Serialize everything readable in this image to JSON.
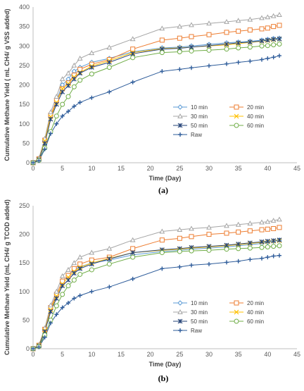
{
  "figure": {
    "panel_tags": [
      "(a)",
      "(b)"
    ]
  },
  "chart_data": [
    {
      "type": "line",
      "title": "",
      "panel_label": "(a)",
      "xlabel": "Time (Day)",
      "ylabel": "Cumulative Methane Yield ( mL CH4/ g VSS added)",
      "xlim": [
        0,
        45
      ],
      "ylim": [
        0,
        400
      ],
      "x_ticks": [
        0,
        5,
        10,
        15,
        20,
        25,
        30,
        35,
        40,
        45
      ],
      "y_ticks": [
        0,
        50,
        100,
        150,
        200,
        250,
        300,
        350,
        400
      ],
      "grid": false,
      "legend_position": "center-right",
      "x": [
        0,
        1,
        2,
        3,
        4,
        5,
        6,
        7,
        8,
        10,
        13,
        17,
        22,
        25,
        27,
        30,
        33,
        35,
        37,
        39,
        40,
        41,
        42
      ],
      "series": [
        {
          "name": "10 min",
          "color": "#5b9bd5",
          "marker": "diamond",
          "values": [
            0,
            8,
            55,
            120,
            160,
            200,
            215,
            235,
            245,
            258,
            268,
            285,
            295,
            297,
            300,
            304,
            308,
            310,
            312,
            315,
            317,
            319,
            320
          ]
        },
        {
          "name": "20 min",
          "color": "#ed7d31",
          "marker": "square",
          "values": [
            0,
            10,
            58,
            122,
            160,
            190,
            205,
            225,
            240,
            253,
            265,
            292,
            315,
            320,
            324,
            329,
            335,
            338,
            341,
            344,
            346,
            350,
            353
          ]
        },
        {
          "name": "30 min",
          "color": "#a5a5a5",
          "marker": "triangle",
          "values": [
            0,
            12,
            62,
            130,
            170,
            215,
            230,
            250,
            268,
            282,
            296,
            318,
            345,
            350,
            354,
            358,
            362,
            365,
            368,
            372,
            374,
            377,
            380
          ]
        },
        {
          "name": "40 min",
          "color": "#ffc000",
          "marker": "x",
          "values": [
            0,
            9,
            56,
            118,
            155,
            190,
            203,
            220,
            232,
            248,
            262,
            283,
            293,
            295,
            297,
            300,
            303,
            306,
            309,
            312,
            314,
            316,
            318
          ]
        },
        {
          "name": "50 min",
          "color": "#264478",
          "marker": "asterisk",
          "values": [
            0,
            8,
            50,
            112,
            150,
            182,
            198,
            215,
            230,
            245,
            258,
            280,
            292,
            294,
            297,
            301,
            305,
            308,
            310,
            313,
            315,
            317,
            318
          ]
        },
        {
          "name": "60 min",
          "color": "#70ad47",
          "marker": "circle",
          "values": [
            0,
            6,
            38,
            80,
            120,
            150,
            170,
            195,
            212,
            228,
            245,
            270,
            283,
            285,
            287,
            289,
            292,
            295,
            297,
            300,
            301,
            303,
            305
          ]
        },
        {
          "name": "Raw",
          "color": "#2e5c9a",
          "marker": "plus",
          "values": [
            0,
            5,
            35,
            75,
            100,
            120,
            132,
            145,
            155,
            167,
            182,
            207,
            235,
            240,
            244,
            249,
            254,
            258,
            261,
            265,
            268,
            271,
            275
          ]
        }
      ]
    },
    {
      "type": "line",
      "title": "",
      "panel_label": "(b)",
      "xlabel": "Time (Day)",
      "ylabel": "Cumulative Methane Yield (mL CH4/ g TCOD added)",
      "xlim": [
        0,
        45
      ],
      "ylim": [
        0,
        250
      ],
      "x_ticks": [
        0,
        5,
        10,
        15,
        20,
        25,
        30,
        35,
        40,
        45
      ],
      "y_ticks": [
        0,
        50,
        100,
        150,
        200,
        250
      ],
      "grid": false,
      "legend_position": "center-right",
      "x": [
        0,
        1,
        2,
        3,
        4,
        5,
        6,
        7,
        8,
        10,
        13,
        17,
        22,
        25,
        27,
        30,
        33,
        35,
        37,
        39,
        40,
        41,
        42
      ],
      "series": [
        {
          "name": "10 min",
          "color": "#5b9bd5",
          "marker": "diamond",
          "values": [
            0,
            6,
            33,
            70,
            95,
            118,
            128,
            138,
            143,
            150,
            155,
            164,
            170,
            172,
            174,
            176,
            178,
            180,
            182,
            184,
            186,
            188,
            190
          ]
        },
        {
          "name": "20 min",
          "color": "#ed7d31",
          "marker": "square",
          "values": [
            0,
            6,
            34,
            72,
            95,
            118,
            128,
            140,
            148,
            155,
            160,
            175,
            190,
            193,
            196,
            200,
            202,
            204,
            206,
            208,
            209,
            210,
            212
          ]
        },
        {
          "name": "30 min",
          "color": "#a5a5a5",
          "marker": "triangle",
          "values": [
            0,
            7,
            36,
            76,
            100,
            127,
            138,
            150,
            160,
            168,
            175,
            190,
            205,
            208,
            210,
            212,
            215,
            217,
            219,
            221,
            222,
            224,
            226
          ]
        },
        {
          "name": "40 min",
          "color": "#ffc000",
          "marker": "x",
          "values": [
            0,
            6,
            32,
            68,
            92,
            113,
            125,
            135,
            142,
            150,
            158,
            168,
            172,
            174,
            176,
            178,
            180,
            182,
            184,
            186,
            187,
            188,
            189
          ]
        },
        {
          "name": "50 min",
          "color": "#264478",
          "marker": "asterisk",
          "values": [
            0,
            5,
            30,
            65,
            88,
            110,
            120,
            132,
            140,
            148,
            157,
            168,
            173,
            175,
            177,
            179,
            181,
            183,
            185,
            187,
            188,
            189,
            190
          ]
        },
        {
          "name": "60 min",
          "color": "#70ad47",
          "marker": "circle",
          "values": [
            0,
            4,
            24,
            50,
            75,
            95,
            110,
            120,
            130,
            138,
            148,
            160,
            168,
            170,
            171,
            172,
            174,
            175,
            176,
            177,
            178,
            179,
            180
          ]
        },
        {
          "name": "Raw",
          "color": "#2e5c9a",
          "marker": "plus",
          "values": [
            0,
            3,
            20,
            45,
            60,
            72,
            80,
            88,
            93,
            100,
            108,
            122,
            140,
            143,
            146,
            148,
            151,
            153,
            156,
            158,
            160,
            162,
            163
          ]
        }
      ]
    }
  ]
}
